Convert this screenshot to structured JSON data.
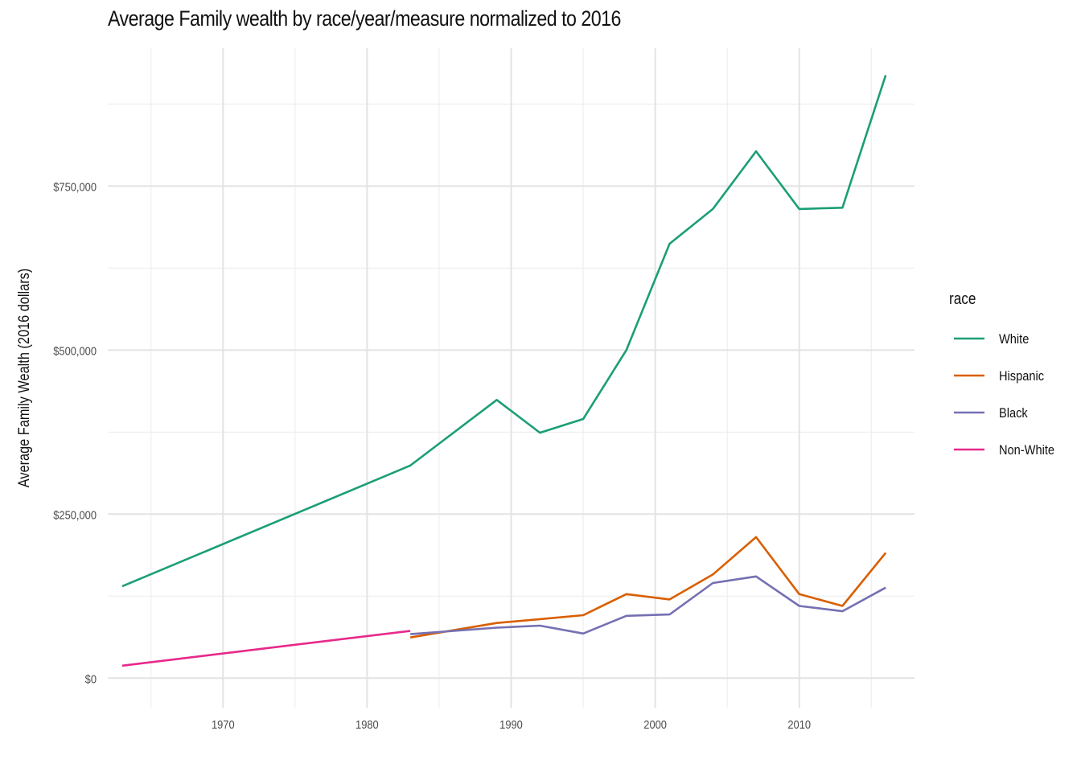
{
  "chart_data": {
    "type": "line",
    "title": "Average Family wealth by race/year/measure normalized to 2016",
    "xlabel": "",
    "ylabel": "Average Family Wealth (2016 dollars)",
    "xlim": [
      1962,
      2018
    ],
    "ylim": [
      -45000,
      960000
    ],
    "x_ticks": [
      1970,
      1980,
      1990,
      2000,
      2010
    ],
    "x_tick_labels": [
      "1970",
      "1980",
      "1990",
      "2000",
      "2010"
    ],
    "y_ticks": [
      0,
      250000,
      500000,
      750000
    ],
    "y_tick_labels": [
      "$0",
      "$250,000",
      "$500,000",
      "$750,000"
    ],
    "grid": true,
    "legend": {
      "title": "race",
      "placement": "right"
    },
    "series": [
      {
        "name": "White",
        "color": "#1b9e77",
        "x": [
          1963,
          1983,
          1989,
          1992,
          1995,
          1998,
          2001,
          2004,
          2007,
          2010,
          2013,
          2016
        ],
        "values": [
          140000,
          324000,
          424000,
          374000,
          395000,
          500000,
          662000,
          715000,
          803000,
          715000,
          717000,
          919000
        ]
      },
      {
        "name": "Hispanic",
        "color": "#d95f02",
        "x": [
          1983,
          1989,
          1992,
          1995,
          1998,
          2001,
          2004,
          2007,
          2010,
          2013,
          2016
        ],
        "values": [
          62000,
          84000,
          90000,
          96000,
          128000,
          120000,
          158000,
          215000,
          128000,
          110000,
          191000
        ]
      },
      {
        "name": "Black",
        "color": "#7570b3",
        "x": [
          1983,
          1989,
          1992,
          1995,
          1998,
          2001,
          2004,
          2007,
          2010,
          2013,
          2016
        ],
        "values": [
          67000,
          77000,
          80000,
          68000,
          95000,
          97000,
          145000,
          155000,
          110000,
          102000,
          138000
        ]
      },
      {
        "name": "Non-White",
        "color": "#e7298a",
        "x": [
          1963,
          1983
        ],
        "values": [
          19000,
          72000
        ]
      }
    ]
  }
}
